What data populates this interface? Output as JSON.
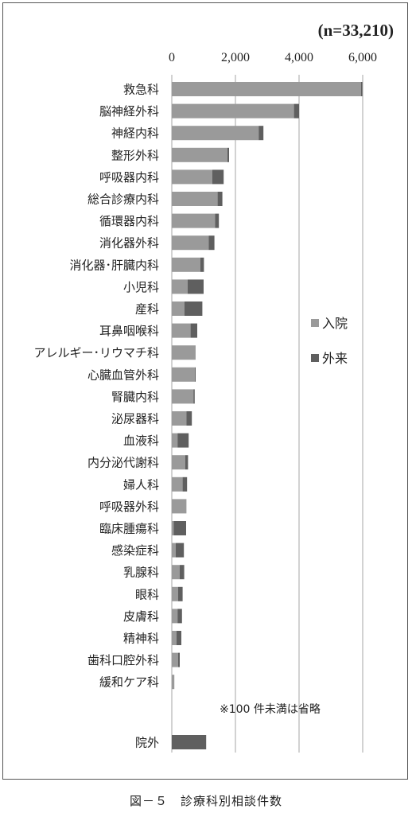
{
  "caption": "図－５　診療科別相談件数",
  "chart_data": {
    "type": "bar",
    "orientation": "horizontal",
    "stacked": true,
    "sample_size_label": "(n=33,210)",
    "xlim": [
      0,
      6000
    ],
    "x_ticks": [
      "0",
      "2,000",
      "4,000",
      "6,000"
    ],
    "grid": true,
    "legend_position": "right",
    "note": "※100 件未満は省略",
    "colors": {
      "入院": "#9a9a9a",
      "外来": "#5f5f5f"
    },
    "categories": [
      "救急科",
      "脳神経外科",
      "神経内科",
      "整形外科",
      "呼吸器内科",
      "総合診療内科",
      "循環器内科",
      "消化器外科",
      "消化器･肝臓内科",
      "小児科",
      "産科",
      "耳鼻咽喉科",
      "アレルギー･リウマチ科",
      "心臓血管外科",
      "腎臓内科",
      "泌尿器科",
      "血液科",
      "内分泌代謝科",
      "婦人科",
      "呼吸器外科",
      "臨床腫瘍科",
      "感染症科",
      "乳腺科",
      "眼科",
      "皮膚科",
      "精神科",
      "歯科口腔外科",
      "緩和ケア科",
      "院外"
    ],
    "series": [
      {
        "name": "入院",
        "values": [
          5950,
          3840,
          2730,
          1750,
          1270,
          1440,
          1360,
          1160,
          900,
          500,
          400,
          590,
          720,
          720,
          680,
          460,
          180,
          420,
          340,
          460,
          60,
          120,
          250,
          200,
          180,
          150,
          200,
          80,
          0
        ]
      },
      {
        "name": "外来",
        "values": [
          40,
          160,
          150,
          50,
          360,
          150,
          120,
          180,
          110,
          500,
          560,
          210,
          20,
          30,
          40,
          170,
          350,
          90,
          140,
          0,
          390,
          260,
          140,
          140,
          140,
          150,
          50,
          0,
          1080
        ]
      }
    ]
  }
}
